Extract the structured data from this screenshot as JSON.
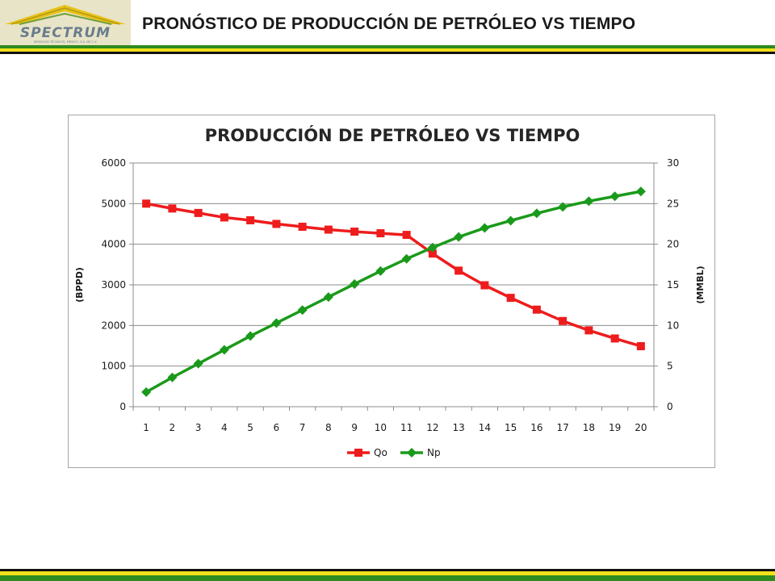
{
  "header": {
    "title": "PRONÓSTICO DE PRODUCCIÓN DE PETRÓLEO VS TIEMPO",
    "logo_text": "SPECTRUM",
    "logo_subtext": "SERVICIOS TÉCNICOS, MÉXICO, S.A. DE C.V."
  },
  "colors": {
    "stripe_green": "#2e8b1e",
    "stripe_yellow": "#f2e11b",
    "stripe_black": "#111111",
    "qo_series": "#ee1c1c",
    "np_series": "#1a9a1a"
  },
  "chart_data": {
    "type": "line",
    "title": "PRODUCCIÓN DE PETRÓLEO VS TIEMPO",
    "ylabel": "(BPPD)",
    "y2label": "(MMBL)",
    "x": [
      1,
      2,
      3,
      4,
      5,
      6,
      7,
      8,
      9,
      10,
      11,
      12,
      13,
      14,
      15,
      16,
      17,
      18,
      19,
      20
    ],
    "ylim": [
      0,
      6000
    ],
    "yticks": [
      0,
      1000,
      2000,
      3000,
      4000,
      5000,
      6000
    ],
    "y2lim": [
      0,
      30
    ],
    "y2ticks": [
      0,
      5,
      10,
      15,
      20,
      25,
      30
    ],
    "grid": "horizontal",
    "legend_position": "bottom",
    "series": [
      {
        "name": "Qo",
        "axis": "left",
        "marker": "square",
        "color": "#ee1c1c",
        "values": [
          5000,
          4880,
          4770,
          4660,
          4590,
          4500,
          4430,
          4360,
          4310,
          4270,
          4230,
          3770,
          3350,
          2990,
          2680,
          2390,
          2110,
          1880,
          1680,
          1490
        ]
      },
      {
        "name": "Np",
        "axis": "right",
        "marker": "diamond",
        "color": "#1a9a1a",
        "values": [
          1.8,
          3.6,
          5.3,
          7.0,
          8.7,
          10.3,
          11.9,
          13.5,
          15.1,
          16.7,
          18.2,
          19.6,
          20.9,
          22.0,
          22.9,
          23.8,
          24.6,
          25.3,
          25.9,
          26.5
        ]
      }
    ]
  }
}
